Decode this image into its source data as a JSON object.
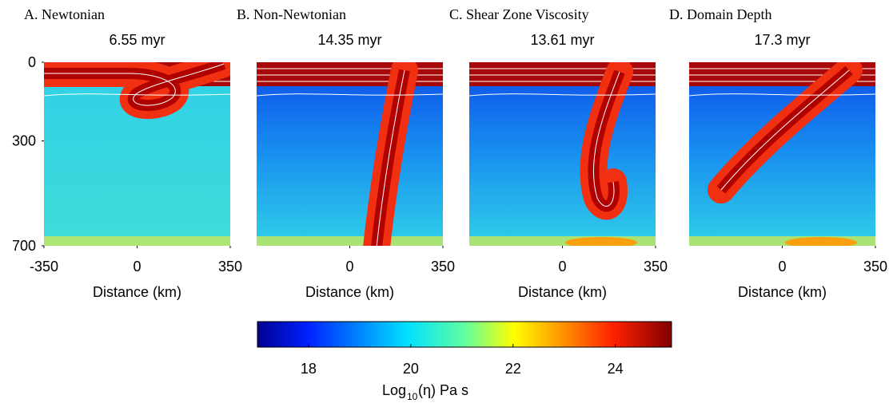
{
  "panels": [
    {
      "title": "A. Newtonian",
      "time": "6.55 myr",
      "xlabel": "Distance (km)",
      "xticks": [
        -350,
        0,
        350
      ],
      "yticks": [
        0,
        300,
        700
      ]
    },
    {
      "title": "B. Non-Newtonian",
      "time": "14.35 myr",
      "xlabel": "Distance (km)",
      "xticks": [
        0,
        350
      ]
    },
    {
      "title": "C. Shear Zone Viscosity",
      "time": "13.61 myr",
      "xlabel": "Distance (km)",
      "xticks": [
        0,
        350
      ]
    },
    {
      "title": "D. Domain Depth",
      "time": "17.3 myr",
      "xlabel": "Distance (km)",
      "xticks": [
        0,
        350
      ]
    }
  ],
  "xlim": [
    -350,
    350
  ],
  "ylim": [
    0,
    700
  ],
  "colorbar": {
    "lim": [
      17,
      25.1
    ],
    "ticks": [
      18,
      20,
      22,
      24
    ],
    "label": [
      "Log",
      "10",
      "(η) Pa s"
    ]
  }
}
